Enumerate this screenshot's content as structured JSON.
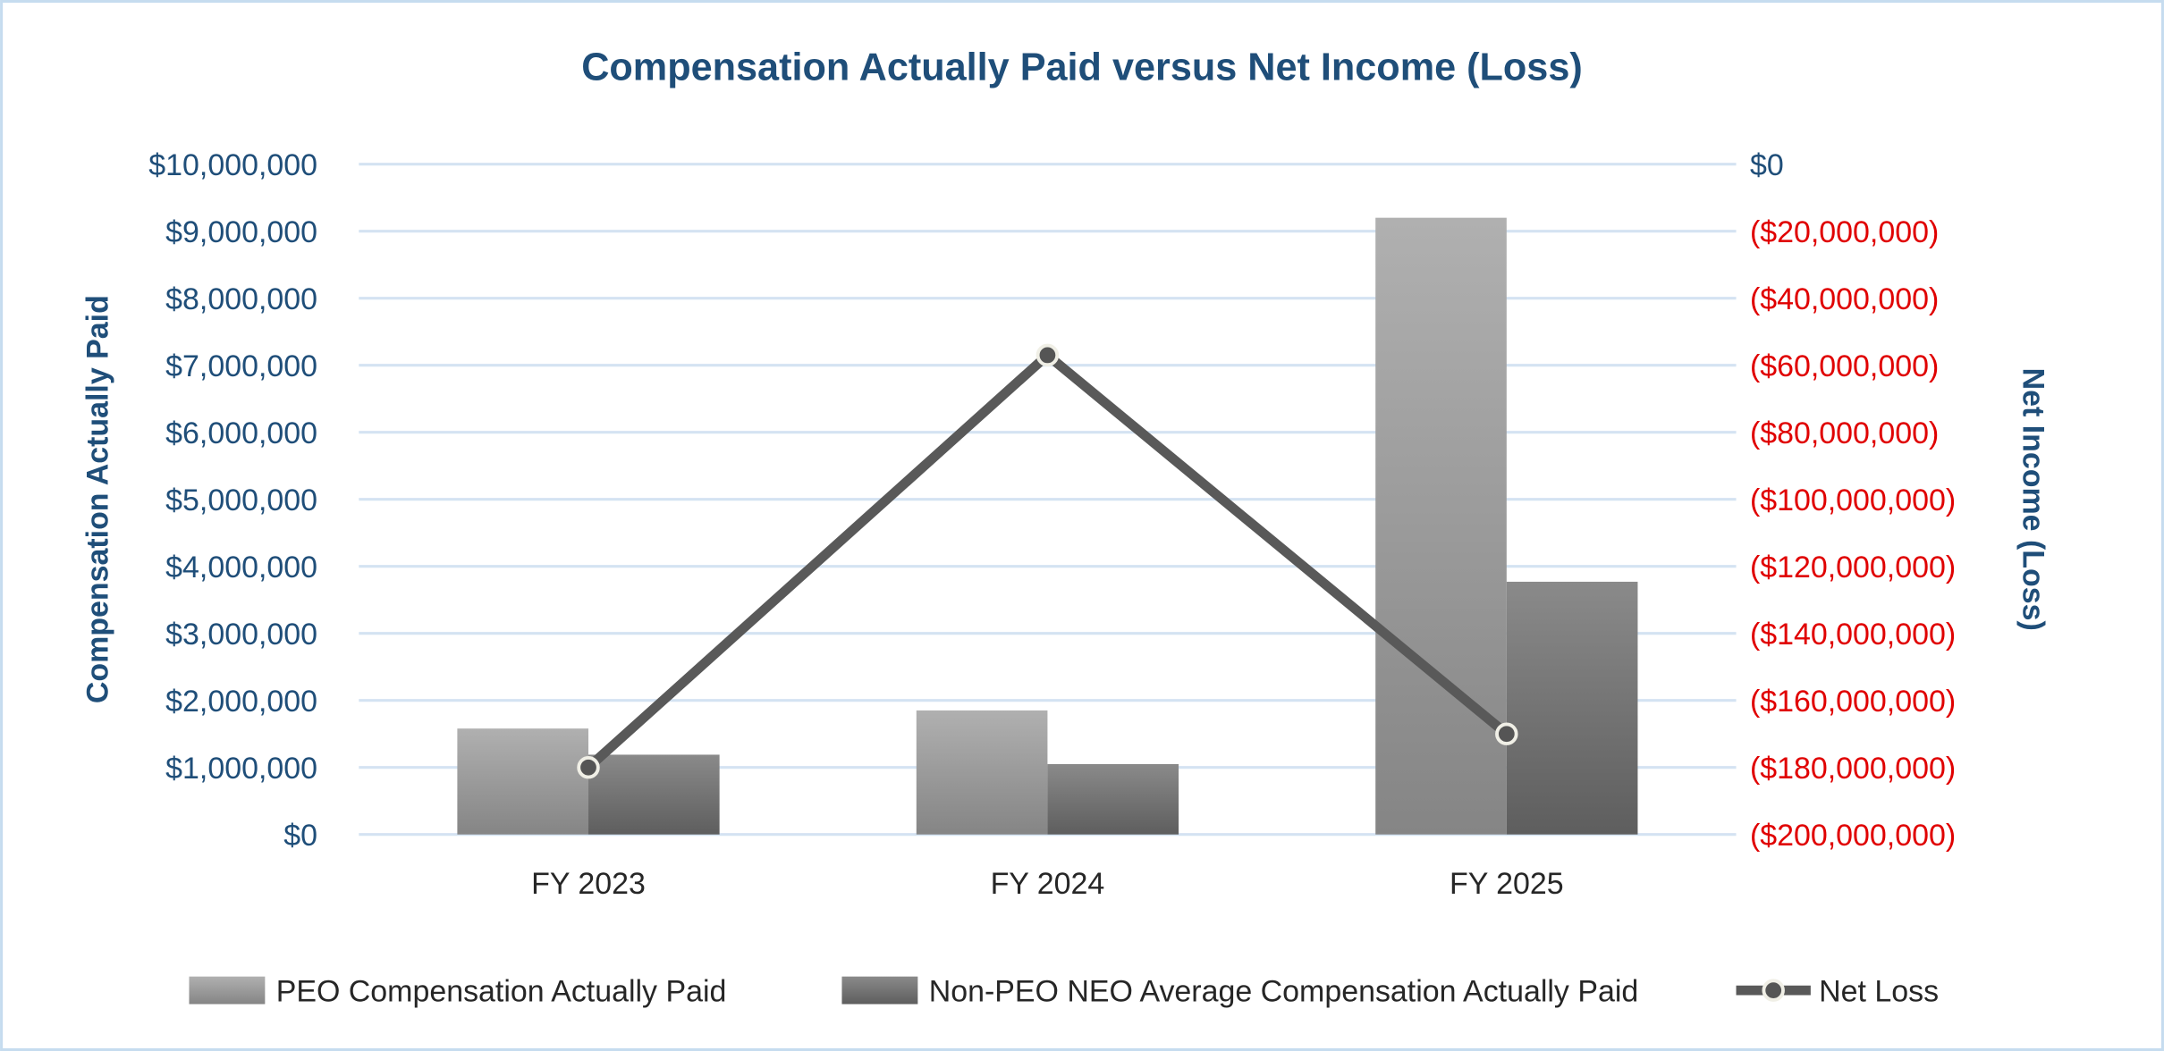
{
  "chart_data": {
    "type": "bar+line",
    "title": "Compensation Actually Paid versus Net Income (Loss)",
    "categories": [
      "FY 2023",
      "FY 2024",
      "FY 2025"
    ],
    "y_left": {
      "label": "Compensation Actually Paid",
      "range": [
        0,
        10000000
      ],
      "ticks": [
        "$0",
        "$1,000,000",
        "$2,000,000",
        "$3,000,000",
        "$4,000,000",
        "$5,000,000",
        "$6,000,000",
        "$7,000,000",
        "$8,000,000",
        "$9,000,000",
        "$10,000,000"
      ]
    },
    "y_right": {
      "label": "Net Income (Loss)",
      "range": [
        -200000000,
        0
      ],
      "ticks": [
        "($200,000,000)",
        "($180,000,000)",
        "($160,000,000)",
        "($140,000,000)",
        "($120,000,000)",
        "($100,000,000)",
        "($80,000,000)",
        "($60,000,000)",
        "($40,000,000)",
        "($20,000,000)",
        "$0"
      ],
      "negative_color": "#e00000"
    },
    "series": [
      {
        "name": "PEO Compensation Actually Paid",
        "type": "bar",
        "axis": "left",
        "values": [
          1580000,
          1850000,
          9200000
        ],
        "color": "#a6a6a6"
      },
      {
        "name": "Non-PEO NEO Average Compensation Actually Paid",
        "type": "bar",
        "axis": "left",
        "values": [
          1190000,
          1050000,
          3770000
        ],
        "color": "#6e6e6e"
      },
      {
        "name": "Net Loss",
        "type": "line",
        "axis": "right",
        "values": [
          -180000000,
          -57000000,
          -170000000
        ],
        "color": "#595959"
      }
    ],
    "grid": true,
    "legend": "bottom"
  }
}
